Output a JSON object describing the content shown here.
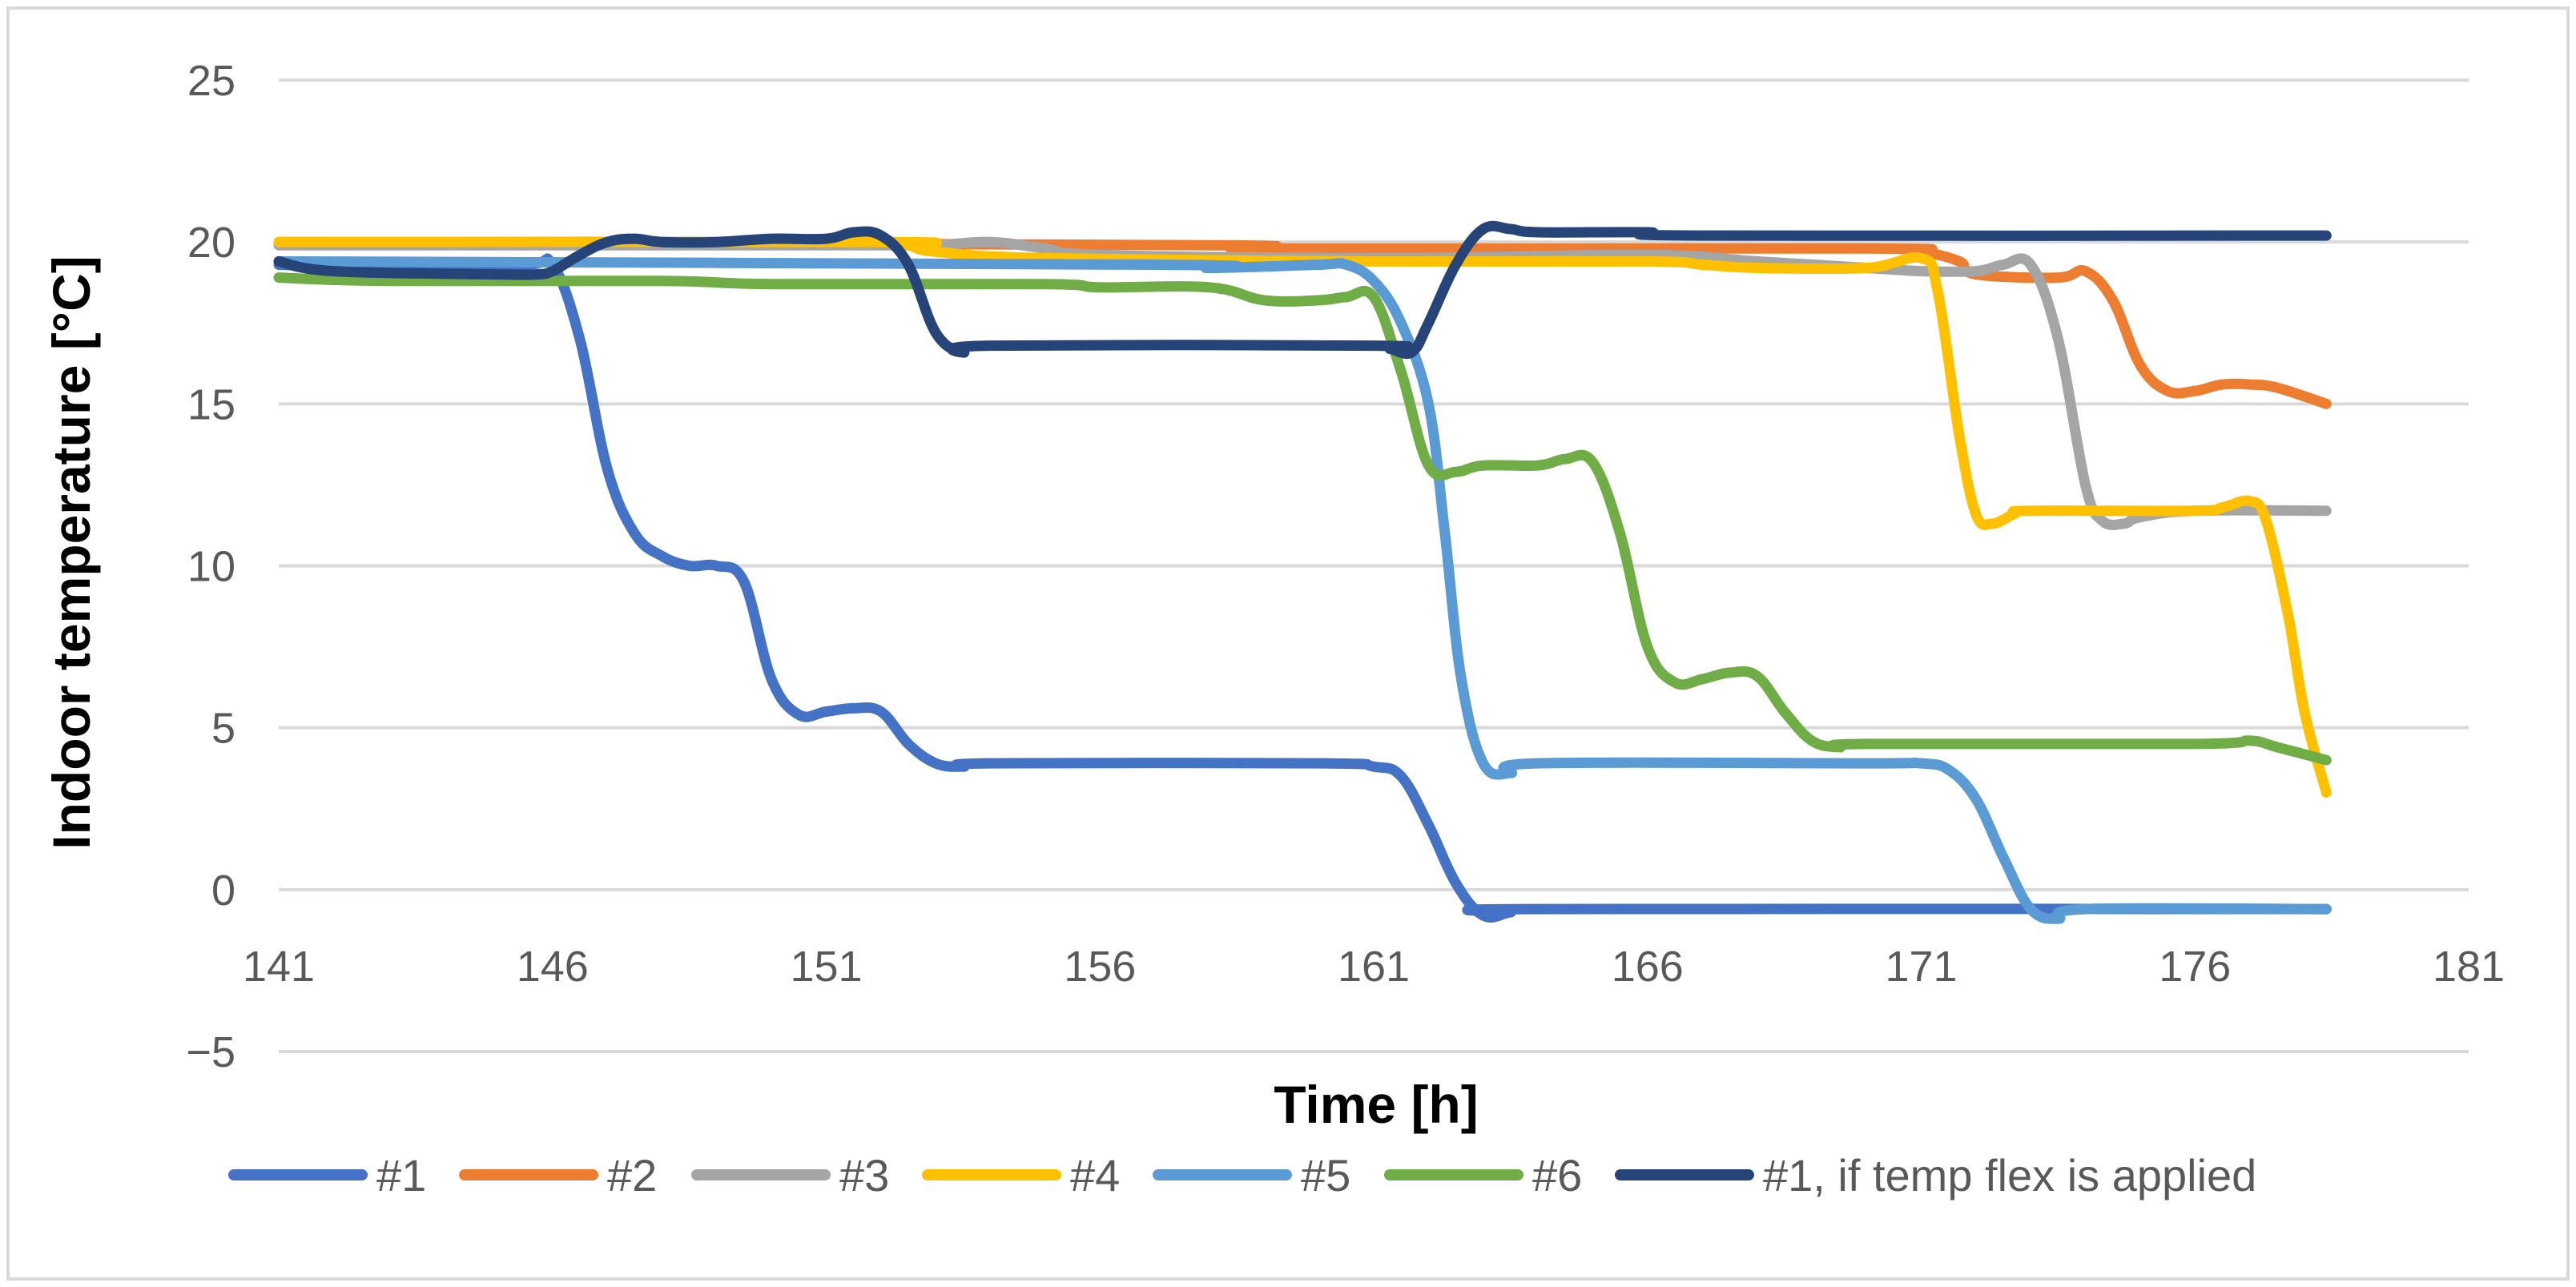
{
  "chart_data": {
    "type": "line",
    "title": "",
    "xlabel": "Time [h]",
    "ylabel": "Indoor temperature [°C]",
    "xlim": [
      141,
      181
    ],
    "ylim": [
      -5,
      25
    ],
    "x_ticks": [
      "141",
      "146",
      "151",
      "156",
      "161",
      "166",
      "171",
      "176",
      "181"
    ],
    "y_ticks": [
      "25",
      "20",
      "15",
      "10",
      "5",
      "0",
      "−5"
    ],
    "grid": true,
    "legend_position": "bottom",
    "series": [
      {
        "name": "#1",
        "color": "#4472C4",
        "points": [
          [
            141,
            19.3
          ],
          [
            143,
            19.2
          ],
          [
            145.5,
            19.3
          ],
          [
            146,
            19.3
          ],
          [
            146.5,
            17
          ],
          [
            147,
            13
          ],
          [
            147.5,
            11
          ],
          [
            148,
            10.3
          ],
          [
            148.5,
            10
          ],
          [
            149,
            10
          ],
          [
            149.5,
            9.5
          ],
          [
            150,
            6.5
          ],
          [
            150.5,
            5.4
          ],
          [
            151,
            5.5
          ],
          [
            151.5,
            5.6
          ],
          [
            152,
            5.5
          ],
          [
            152.5,
            4.5
          ],
          [
            153,
            3.9
          ],
          [
            153.5,
            3.8
          ],
          [
            154,
            3.9
          ],
          [
            160,
            3.9
          ],
          [
            161,
            3.8
          ],
          [
            161.5,
            3.5
          ],
          [
            162,
            2
          ],
          [
            162.5,
            0.2
          ],
          [
            163,
            -0.8
          ],
          [
            163.5,
            -0.7
          ],
          [
            164,
            -0.6
          ],
          [
            178.4,
            -0.6
          ]
        ]
      },
      {
        "name": "#2",
        "color": "#ED7D31",
        "points": [
          [
            141,
            20
          ],
          [
            158,
            19.9
          ],
          [
            159,
            19.8
          ],
          [
            170,
            19.8
          ],
          [
            171,
            19.7
          ],
          [
            171.7,
            19.4
          ],
          [
            172,
            19
          ],
          [
            173.5,
            18.9
          ],
          [
            174,
            19.1
          ],
          [
            174.5,
            18.2
          ],
          [
            175,
            16.2
          ],
          [
            175.5,
            15.4
          ],
          [
            176,
            15.4
          ],
          [
            176.5,
            15.6
          ],
          [
            177,
            15.6
          ],
          [
            177.5,
            15.5
          ],
          [
            178.4,
            15
          ]
        ]
      },
      {
        "name": "#3",
        "color": "#A5A5A5",
        "points": [
          [
            141,
            19.9
          ],
          [
            152,
            19.9
          ],
          [
            153,
            19.9
          ],
          [
            154,
            20
          ],
          [
            155,
            19.8
          ],
          [
            156,
            19.6
          ],
          [
            161,
            19.5
          ],
          [
            166,
            19.6
          ],
          [
            168,
            19.4
          ],
          [
            170,
            19.2
          ],
          [
            171,
            19.1
          ],
          [
            172,
            19.1
          ],
          [
            172.5,
            19.3
          ],
          [
            173,
            19.3
          ],
          [
            173.5,
            17
          ],
          [
            174,
            12.5
          ],
          [
            174.3,
            11.4
          ],
          [
            174.7,
            11.3
          ],
          [
            175,
            11.5
          ],
          [
            176,
            11.7
          ],
          [
            178.4,
            11.7
          ]
        ]
      },
      {
        "name": "#4",
        "color": "#FFC000",
        "points": [
          [
            141,
            20
          ],
          [
            152,
            20
          ],
          [
            152.5,
            19.9
          ],
          [
            153,
            19.7
          ],
          [
            155,
            19.5
          ],
          [
            161,
            19.4
          ],
          [
            166,
            19.4
          ],
          [
            167,
            19.3
          ],
          [
            168,
            19.2
          ],
          [
            170,
            19.2
          ],
          [
            171,
            19.5
          ],
          [
            171.3,
            18.5
          ],
          [
            171.7,
            14
          ],
          [
            172,
            11.6
          ],
          [
            172.3,
            11.3
          ],
          [
            172.7,
            11.6
          ],
          [
            173,
            11.7
          ],
          [
            176,
            11.7
          ],
          [
            176.5,
            11.8
          ],
          [
            177,
            12
          ],
          [
            177.3,
            11.4
          ],
          [
            177.7,
            8.5
          ],
          [
            178,
            5.5
          ],
          [
            178.4,
            3
          ]
        ]
      },
      {
        "name": "#5",
        "color": "#5B9BD5",
        "points": [
          [
            141,
            19.4
          ],
          [
            157,
            19.3
          ],
          [
            158,
            19.2
          ],
          [
            160,
            19.3
          ],
          [
            160.5,
            19.3
          ],
          [
            161,
            18.8
          ],
          [
            161.5,
            17.5
          ],
          [
            162,
            15
          ],
          [
            162.3,
            11
          ],
          [
            162.6,
            6.5
          ],
          [
            163,
            3.9
          ],
          [
            163.5,
            3.6
          ],
          [
            164,
            3.9
          ],
          [
            170,
            3.9
          ],
          [
            171,
            3.9
          ],
          [
            171.5,
            3.7
          ],
          [
            172,
            2.8
          ],
          [
            172.5,
            1
          ],
          [
            173,
            -0.6
          ],
          [
            173.5,
            -0.9
          ],
          [
            174,
            -0.6
          ],
          [
            178.4,
            -0.6
          ]
        ]
      },
      {
        "name": "#6",
        "color": "#70AD47",
        "points": [
          [
            141,
            18.9
          ],
          [
            143,
            18.8
          ],
          [
            148,
            18.8
          ],
          [
            150,
            18.7
          ],
          [
            155,
            18.7
          ],
          [
            156,
            18.6
          ],
          [
            158,
            18.6
          ],
          [
            159,
            18.2
          ],
          [
            160,
            18.2
          ],
          [
            160.5,
            18.3
          ],
          [
            161,
            18.3
          ],
          [
            161.5,
            16
          ],
          [
            162,
            13.1
          ],
          [
            162.5,
            12.9
          ],
          [
            163,
            13.1
          ],
          [
            164,
            13.1
          ],
          [
            164.5,
            13.3
          ],
          [
            165,
            13.2
          ],
          [
            165.5,
            11
          ],
          [
            166,
            7.5
          ],
          [
            166.5,
            6.4
          ],
          [
            167,
            6.5
          ],
          [
            167.5,
            6.7
          ],
          [
            168,
            6.6
          ],
          [
            168.5,
            5.5
          ],
          [
            169,
            4.6
          ],
          [
            169.5,
            4.4
          ],
          [
            170,
            4.5
          ],
          [
            176,
            4.5
          ],
          [
            177,
            4.6
          ],
          [
            177.5,
            4.4
          ],
          [
            178.4,
            4
          ]
        ]
      },
      {
        "name": "#1, if temp flex is applied",
        "color": "#264478",
        "points": [
          [
            141,
            19.4
          ],
          [
            142,
            19.1
          ],
          [
            145,
            19
          ],
          [
            145.7,
            19
          ],
          [
            146,
            19.1
          ],
          [
            146.5,
            19.6
          ],
          [
            147,
            20
          ],
          [
            147.5,
            20.1
          ],
          [
            148,
            20
          ],
          [
            149,
            20
          ],
          [
            150,
            20.1
          ],
          [
            151,
            20.1
          ],
          [
            151.5,
            20.3
          ],
          [
            152,
            20.2
          ],
          [
            152.5,
            19.3
          ],
          [
            153,
            17.2
          ],
          [
            153.5,
            16.6
          ],
          [
            154,
            16.8
          ],
          [
            161,
            16.8
          ],
          [
            161.3,
            16.7
          ],
          [
            161.7,
            16.6
          ],
          [
            162,
            17.5
          ],
          [
            162.5,
            19.3
          ],
          [
            163,
            20.4
          ],
          [
            163.5,
            20.4
          ],
          [
            164,
            20.3
          ],
          [
            166,
            20.3
          ],
          [
            167,
            20.2
          ],
          [
            178.4,
            20.2
          ]
        ]
      }
    ]
  }
}
